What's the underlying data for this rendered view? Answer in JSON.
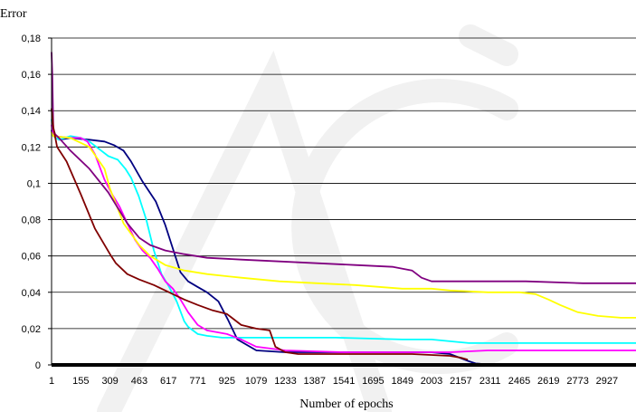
{
  "chart_data": {
    "type": "line",
    "title": "",
    "ylabel": "Error",
    "xlabel": "Number of epochs",
    "xlim": [
      1,
      3080
    ],
    "ylim": [
      0,
      0.18
    ],
    "grid": "horizontal",
    "x_tick_labels": [
      "1",
      "155",
      "309",
      "463",
      "617",
      "771",
      "925",
      "1079",
      "1233",
      "1387",
      "1541",
      "1695",
      "1849",
      "2003",
      "2157",
      "2311",
      "2465",
      "2619",
      "2773",
      "2927"
    ],
    "y_tick_labels": [
      "0",
      "0,02",
      "0,04",
      "0,06",
      "0,08",
      "0,1",
      "0,12",
      "0,14",
      "0,16",
      "0,18"
    ],
    "series": [
      {
        "color": "#000080",
        "x": [
          1,
          10,
          40,
          100,
          200,
          280,
          330,
          380,
          420,
          480,
          550,
          600,
          640,
          680,
          720,
          770,
          820,
          880,
          930,
          980,
          1080,
          1230,
          1540,
          1850,
          2000,
          2100,
          2150,
          2200,
          2235,
          2260
        ],
        "y": [
          0.129,
          0.126,
          0.124,
          0.125,
          0.124,
          0.123,
          0.121,
          0.118,
          0.112,
          0.101,
          0.09,
          0.077,
          0.064,
          0.051,
          0.046,
          0.043,
          0.04,
          0.035,
          0.025,
          0.014,
          0.008,
          0.007,
          0.007,
          0.007,
          0.007,
          0.006,
          0.004,
          0.002,
          0.0008,
          0.0006
        ]
      },
      {
        "color": "#00FFFF",
        "x": [
          1,
          10,
          40,
          100,
          155,
          200,
          250,
          300,
          350,
          390,
          420,
          460,
          500,
          540,
          580,
          620,
          660,
          700,
          720,
          771,
          820,
          900,
          1000,
          1233,
          1500,
          1849,
          2003,
          2200,
          2465,
          2773,
          2927,
          3080
        ],
        "y": [
          0.135,
          0.126,
          0.124,
          0.126,
          0.125,
          0.123,
          0.119,
          0.115,
          0.113,
          0.108,
          0.103,
          0.093,
          0.08,
          0.063,
          0.05,
          0.043,
          0.035,
          0.024,
          0.021,
          0.017,
          0.016,
          0.015,
          0.015,
          0.015,
          0.015,
          0.014,
          0.014,
          0.012,
          0.012,
          0.012,
          0.012,
          0.012
        ]
      },
      {
        "color": "#FF00FF",
        "x": [
          1,
          10,
          100,
          155,
          190,
          230,
          280,
          320,
          360,
          400,
          440,
          480,
          520,
          560,
          600,
          640,
          680,
          720,
          771,
          820,
          925,
          1000,
          1079,
          1233,
          1541,
          1849,
          2100,
          2300,
          2500,
          2800,
          3080
        ],
        "y": [
          0.132,
          0.126,
          0.125,
          0.125,
          0.123,
          0.116,
          0.102,
          0.094,
          0.087,
          0.078,
          0.069,
          0.063,
          0.059,
          0.053,
          0.046,
          0.042,
          0.036,
          0.029,
          0.022,
          0.019,
          0.017,
          0.014,
          0.01,
          0.008,
          0.007,
          0.007,
          0.007,
          0.008,
          0.008,
          0.008,
          0.008
        ]
      },
      {
        "color": "#FFFF00",
        "x": [
          1,
          10,
          100,
          200,
          280,
          309,
          380,
          463,
          520,
          600,
          700,
          820,
          1000,
          1200,
          1400,
          1600,
          1849,
          2003,
          2100,
          2300,
          2465,
          2550,
          2619,
          2680,
          2773,
          2880,
          3000,
          3080
        ],
        "y": [
          0.128,
          0.126,
          0.125,
          0.12,
          0.108,
          0.097,
          0.078,
          0.066,
          0.06,
          0.055,
          0.052,
          0.05,
          0.048,
          0.046,
          0.045,
          0.044,
          0.042,
          0.042,
          0.041,
          0.04,
          0.04,
          0.039,
          0.036,
          0.033,
          0.029,
          0.027,
          0.026,
          0.026
        ]
      },
      {
        "color": "#800080",
        "x": [
          1,
          5,
          10,
          20,
          40,
          100,
          200,
          300,
          400,
          463,
          520,
          600,
          700,
          820,
          1000,
          1200,
          1400,
          1600,
          1800,
          1900,
          1950,
          2003,
          2100,
          2300,
          2500,
          2800,
          3080
        ],
        "y": [
          0.172,
          0.16,
          0.13,
          0.127,
          0.125,
          0.118,
          0.108,
          0.095,
          0.078,
          0.07,
          0.066,
          0.063,
          0.061,
          0.059,
          0.058,
          0.057,
          0.056,
          0.055,
          0.054,
          0.052,
          0.048,
          0.046,
          0.046,
          0.046,
          0.046,
          0.045,
          0.045
        ]
      },
      {
        "color": "#800000",
        "x": [
          1,
          10,
          30,
          80,
          155,
          230,
          309,
          340,
          400,
          463,
          540,
          620,
          700,
          771,
          850,
          925,
          1000,
          1079,
          1150,
          1180,
          1233,
          1300,
          1500,
          1700,
          1900,
          2100,
          2157,
          2190
        ],
        "y": [
          0.141,
          0.131,
          0.12,
          0.112,
          0.094,
          0.075,
          0.061,
          0.056,
          0.05,
          0.047,
          0.044,
          0.04,
          0.036,
          0.033,
          0.03,
          0.028,
          0.022,
          0.02,
          0.019,
          0.01,
          0.007,
          0.006,
          0.006,
          0.006,
          0.006,
          0.005,
          0.004,
          0.003
        ]
      }
    ]
  }
}
